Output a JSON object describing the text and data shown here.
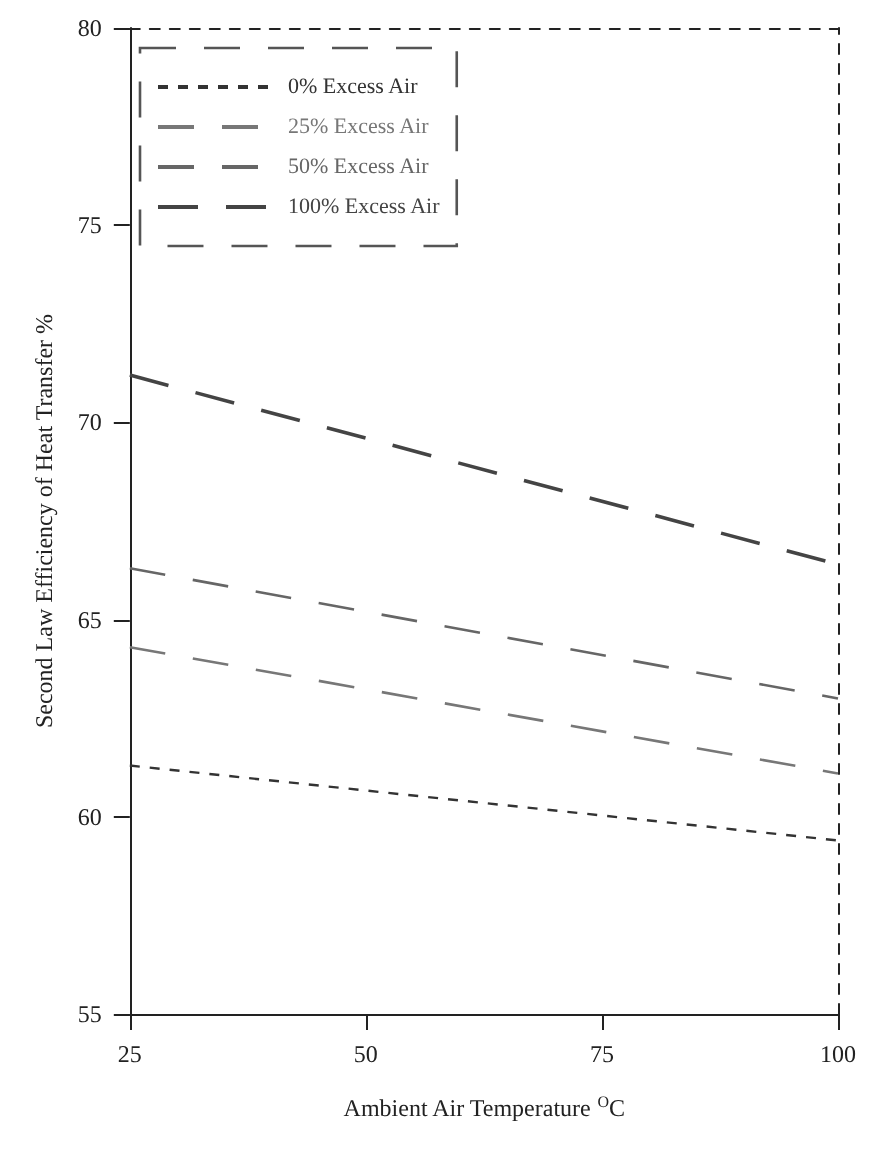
{
  "chart_data": {
    "type": "line",
    "xlabel": "Ambient Air Temperature $^{O}$C",
    "ylabel": "Second Law Efficiency of Heat Transfer %",
    "x": [
      25,
      100
    ],
    "series": [
      {
        "name": "0% Excess Air",
        "color": "#333333",
        "values": [
          61.3,
          59.4
        ]
      },
      {
        "name": "25% Excess Air",
        "color": "#777777",
        "values": [
          64.3,
          61.1
        ]
      },
      {
        "name": "50% Excess Air",
        "color": "#666666",
        "values": [
          66.3,
          63.0
        ]
      },
      {
        "name": "100% Excess Air",
        "color": "#444444",
        "values": [
          71.2,
          66.4
        ]
      }
    ],
    "xlim": [
      25,
      100
    ],
    "xticks": [
      25,
      50,
      75,
      100
    ],
    "ylim": [
      55,
      80
    ],
    "yticks": [
      55,
      60,
      65,
      70,
      75,
      80
    ],
    "grid": false,
    "legend": "top left",
    "marker": "none",
    "line_style": "dashed"
  }
}
